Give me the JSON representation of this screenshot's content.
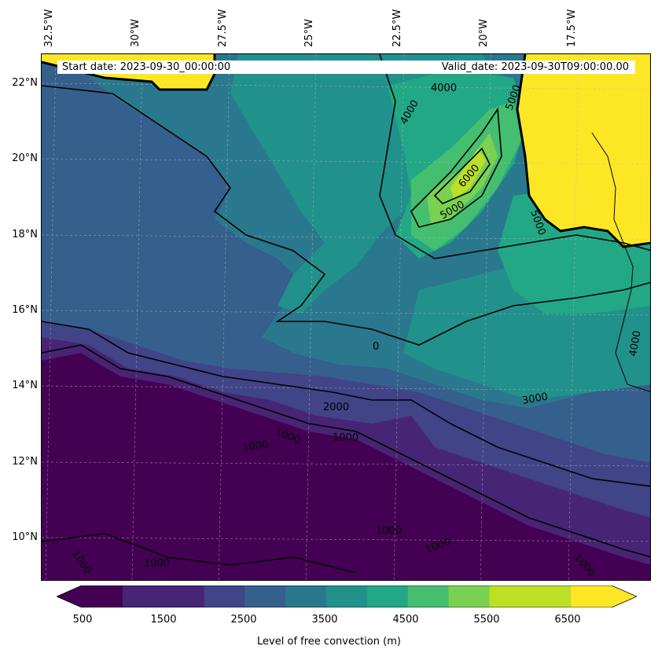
{
  "header": {
    "start_date": "Start date: 2023-09-30_00:00:00",
    "valid_date": "Valid_date: 2023-09-30T09:00:00.00"
  },
  "axes": {
    "lon_labels": [
      "32.5°W",
      "30°W",
      "27.5°W",
      "25°W",
      "22.5°W",
      "20°W",
      "17.5°W"
    ],
    "lat_labels": [
      "22°N",
      "20°N",
      "18°N",
      "16°N",
      "14°N",
      "12°N",
      "10°N"
    ]
  },
  "contour_labels": [
    "4000",
    "4000",
    "5000",
    "5000",
    "6000",
    "5000",
    "3000",
    "4000",
    "2000",
    "1000",
    "1000",
    "1000",
    "1000",
    "1000",
    "1000",
    "1000",
    "1000",
    "0"
  ],
  "colorbar": {
    "label": "Level of free convection (m)",
    "ticks": [
      "500",
      "1500",
      "2500",
      "3500",
      "4500",
      "5500",
      "6500"
    ],
    "levels": [
      500,
      1000,
      1500,
      2000,
      2500,
      3000,
      3500,
      4000,
      4500,
      5000,
      5500,
      6000,
      6500,
      7000
    ],
    "extend": "both",
    "colors": [
      "#440154",
      "#482475",
      "#414487",
      "#355f8d",
      "#2a788e",
      "#21918c",
      "#22a884",
      "#44bf70",
      "#7ad151",
      "#bddf26",
      "#fde725"
    ]
  },
  "map": {
    "projection": "lat-lon",
    "gridlines": "dashed",
    "coastlines": true
  }
}
